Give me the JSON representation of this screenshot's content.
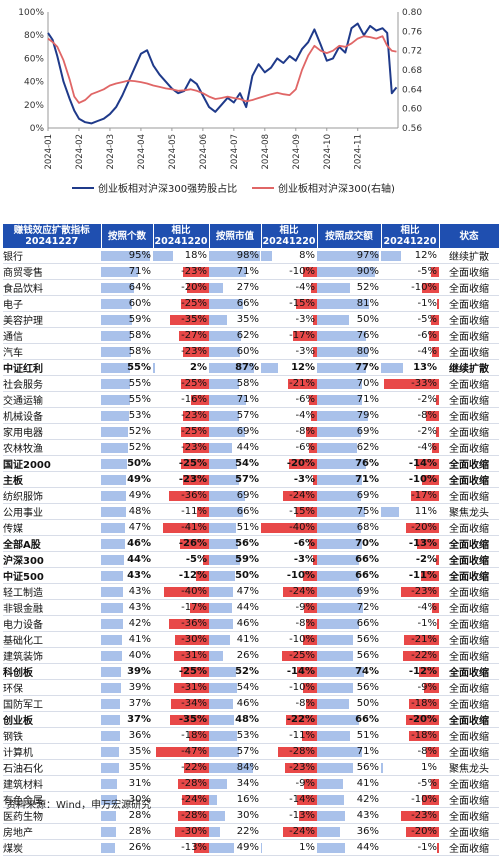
{
  "chart_data": [
    {
      "type": "line",
      "x_ticks": [
        "2024-01",
        "2024-02",
        "2024-03",
        "2024-04",
        "2024-05",
        "2024-06",
        "2024-07",
        "2024-08",
        "2024-09",
        "2024-10",
        "2024-11"
      ],
      "yleft_ticks": [
        "0%",
        "20%",
        "40%",
        "60%",
        "80%",
        "100%"
      ],
      "yright_ticks": [
        "0.56",
        "0.60",
        "0.64",
        "0.68",
        "0.72",
        "0.76",
        "0.80"
      ],
      "ylim_left": [
        0,
        100
      ],
      "ylim_right": [
        0.56,
        0.8
      ],
      "grid": false,
      "legend": "bottom",
      "series": [
        {
          "name": "创业板相对沪深300强势股占比",
          "axis": "left",
          "color": "#1f3a8a",
          "x": [
            0,
            0.15,
            0.3,
            0.5,
            0.7,
            0.85,
            1.0,
            1.2,
            1.4,
            1.6,
            1.8,
            2.0,
            2.2,
            2.4,
            2.6,
            2.8,
            3.0,
            3.2,
            3.4,
            3.6,
            3.8,
            4.0,
            4.2,
            4.4,
            4.6,
            4.8,
            5.0,
            5.2,
            5.4,
            5.6,
            5.8,
            6.0,
            6.2,
            6.4,
            6.6,
            6.8,
            7.0,
            7.2,
            7.4,
            7.6,
            7.8,
            8.0,
            8.2,
            8.4,
            8.6,
            8.8,
            9.0,
            9.2,
            9.4,
            9.6,
            9.8,
            10.0,
            10.2,
            10.4,
            10.6,
            10.8,
            10.95,
            11.1,
            11.25
          ],
          "values": [
            82,
            76,
            62,
            40,
            25,
            15,
            8,
            5,
            4,
            6,
            8,
            12,
            18,
            28,
            40,
            52,
            64,
            67,
            54,
            46,
            40,
            34,
            30,
            32,
            42,
            38,
            28,
            18,
            14,
            20,
            26,
            22,
            30,
            18,
            45,
            55,
            48,
            52,
            60,
            56,
            62,
            58,
            68,
            74,
            85,
            72,
            58,
            60,
            70,
            65,
            86,
            90,
            80,
            88,
            84,
            86,
            82,
            30,
            35
          ]
        },
        {
          "name": "创业板相对沪深300(右轴)",
          "axis": "right",
          "color": "#e06666",
          "x": [
            0,
            0.15,
            0.3,
            0.5,
            0.7,
            0.85,
            1.0,
            1.2,
            1.4,
            1.6,
            1.8,
            2.0,
            2.2,
            2.4,
            2.6,
            2.8,
            3.0,
            3.2,
            3.4,
            3.6,
            3.8,
            4.0,
            4.2,
            4.4,
            4.6,
            4.8,
            5.0,
            5.2,
            5.4,
            5.6,
            5.8,
            6.0,
            6.2,
            6.4,
            6.6,
            6.8,
            7.0,
            7.2,
            7.4,
            7.6,
            7.8,
            8.0,
            8.2,
            8.4,
            8.6,
            8.8,
            9.0,
            9.2,
            9.4,
            9.6,
            9.8,
            10.0,
            10.2,
            10.4,
            10.6,
            10.8,
            10.95,
            11.1,
            11.25
          ],
          "values": [
            0.745,
            0.738,
            0.728,
            0.7,
            0.66,
            0.625,
            0.612,
            0.618,
            0.63,
            0.635,
            0.64,
            0.648,
            0.652,
            0.655,
            0.658,
            0.657,
            0.655,
            0.652,
            0.648,
            0.645,
            0.642,
            0.64,
            0.637,
            0.638,
            0.64,
            0.637,
            0.632,
            0.625,
            0.62,
            0.622,
            0.625,
            0.622,
            0.62,
            0.615,
            0.618,
            0.622,
            0.626,
            0.63,
            0.633,
            0.63,
            0.628,
            0.64,
            0.68,
            0.71,
            0.73,
            0.72,
            0.715,
            0.72,
            0.73,
            0.728,
            0.735,
            0.745,
            0.75,
            0.748,
            0.745,
            0.75,
            0.73,
            0.72,
            0.718
          ]
        }
      ]
    },
    {
      "type": "table",
      "title": "赚钱效应扩散指标",
      "subtitle": "20241227",
      "columns": [
        "按照个数",
        "相比20241220",
        "按照市值",
        "相比20241220",
        "按照成交额",
        "相比20241220",
        "状态"
      ],
      "rows": [
        {
          "name": "银行",
          "bold": false,
          "v": [
            95,
            18,
            98,
            8,
            97,
            12
          ],
          "status": "继续扩散"
        },
        {
          "name": "商贸零售",
          "bold": false,
          "v": [
            71,
            -23,
            71,
            -10,
            90,
            -5
          ],
          "status": "全面收缩"
        },
        {
          "name": "食品饮料",
          "bold": false,
          "v": [
            64,
            -20,
            27,
            -4,
            52,
            -10
          ],
          "status": "全面收缩"
        },
        {
          "name": "电子",
          "bold": false,
          "v": [
            60,
            -25,
            66,
            -15,
            81,
            -1
          ],
          "status": "全面收缩"
        },
        {
          "name": "美容护理",
          "bold": false,
          "v": [
            59,
            -35,
            35,
            -3,
            50,
            -5
          ],
          "status": "全面收缩"
        },
        {
          "name": "通信",
          "bold": false,
          "v": [
            58,
            -27,
            62,
            -17,
            76,
            -6
          ],
          "status": "全面收缩"
        },
        {
          "name": "汽车",
          "bold": false,
          "v": [
            58,
            -23,
            60,
            -3,
            80,
            -4
          ],
          "status": "全面收缩"
        },
        {
          "name": "中证红利",
          "bold": true,
          "v": [
            55,
            2,
            87,
            12,
            77,
            13
          ],
          "status": "继续扩散"
        },
        {
          "name": "社会服务",
          "bold": false,
          "v": [
            55,
            -25,
            58,
            -21,
            70,
            -33
          ],
          "status": "全面收缩"
        },
        {
          "name": "交通运输",
          "bold": false,
          "v": [
            55,
            -16,
            71,
            -6,
            71,
            -2
          ],
          "status": "全面收缩"
        },
        {
          "name": "机械设备",
          "bold": false,
          "v": [
            53,
            -23,
            57,
            -4,
            79,
            -8
          ],
          "status": "全面收缩"
        },
        {
          "name": "家用电器",
          "bold": false,
          "v": [
            52,
            -25,
            69,
            -8,
            69,
            -2
          ],
          "status": "全面收缩"
        },
        {
          "name": "农林牧渔",
          "bold": false,
          "v": [
            52,
            -23,
            44,
            -6,
            62,
            -4
          ],
          "status": "全面收缩"
        },
        {
          "name": "国证2000",
          "bold": true,
          "v": [
            50,
            -25,
            54,
            -20,
            76,
            -14
          ],
          "status": "全面收缩"
        },
        {
          "name": "主板",
          "bold": true,
          "v": [
            49,
            -23,
            57,
            -3,
            71,
            -10
          ],
          "status": "全面收缩"
        },
        {
          "name": "纺织服饰",
          "bold": false,
          "v": [
            49,
            -36,
            69,
            -24,
            69,
            -17
          ],
          "status": "全面收缩"
        },
        {
          "name": "公用事业",
          "bold": false,
          "v": [
            48,
            -11,
            66,
            -15,
            75,
            11
          ],
          "status": "聚焦龙头"
        },
        {
          "name": "传媒",
          "bold": false,
          "v": [
            47,
            -41,
            51,
            -40,
            68,
            -20
          ],
          "status": "全面收缩"
        },
        {
          "name": "全部A股",
          "bold": true,
          "v": [
            46,
            -26,
            56,
            -6,
            70,
            -13
          ],
          "status": "全面收缩"
        },
        {
          "name": "沪深300",
          "bold": true,
          "v": [
            44,
            -5,
            59,
            -3,
            66,
            -2
          ],
          "status": "全面收缩"
        },
        {
          "name": "中证500",
          "bold": true,
          "v": [
            43,
            -12,
            50,
            -10,
            66,
            -11
          ],
          "status": "全面收缩"
        },
        {
          "name": "轻工制造",
          "bold": false,
          "v": [
            43,
            -40,
            47,
            -24,
            69,
            -23
          ],
          "status": "全面收缩"
        },
        {
          "name": "非银金融",
          "bold": false,
          "v": [
            43,
            -17,
            44,
            -9,
            72,
            -4
          ],
          "status": "全面收缩"
        },
        {
          "name": "电力设备",
          "bold": false,
          "v": [
            42,
            -36,
            46,
            -8,
            66,
            -1
          ],
          "status": "全面收缩"
        },
        {
          "name": "基础化工",
          "bold": false,
          "v": [
            41,
            -30,
            41,
            -10,
            56,
            -21
          ],
          "status": "全面收缩"
        },
        {
          "name": "建筑装饰",
          "bold": false,
          "v": [
            40,
            -31,
            26,
            -25,
            56,
            -22
          ],
          "status": "全面收缩"
        },
        {
          "name": "科创板",
          "bold": true,
          "v": [
            39,
            -25,
            52,
            -14,
            74,
            -12
          ],
          "status": "全面收缩"
        },
        {
          "name": "环保",
          "bold": false,
          "v": [
            39,
            -31,
            54,
            -10,
            56,
            -9
          ],
          "status": "全面收缩"
        },
        {
          "name": "国防军工",
          "bold": false,
          "v": [
            37,
            -34,
            46,
            -8,
            50,
            -18
          ],
          "status": "全面收缩"
        },
        {
          "name": "创业板",
          "bold": true,
          "v": [
            37,
            -35,
            48,
            -22,
            66,
            -20
          ],
          "status": "全面收缩"
        },
        {
          "name": "钢铁",
          "bold": false,
          "v": [
            36,
            -18,
            53,
            -11,
            51,
            -18
          ],
          "status": "全面收缩"
        },
        {
          "name": "计算机",
          "bold": false,
          "v": [
            35,
            -47,
            57,
            -28,
            71,
            -8
          ],
          "status": "全面收缩"
        },
        {
          "name": "石油石化",
          "bold": false,
          "v": [
            35,
            -22,
            84,
            -23,
            56,
            1
          ],
          "status": "聚焦龙头"
        },
        {
          "name": "建筑材料",
          "bold": false,
          "v": [
            31,
            -28,
            34,
            -9,
            41,
            -5
          ],
          "status": "全面收缩"
        },
        {
          "name": "有色金属",
          "bold": false,
          "v": [
            30,
            -24,
            16,
            -14,
            42,
            -10
          ],
          "status": "全面收缩"
        },
        {
          "name": "医药生物",
          "bold": false,
          "v": [
            28,
            -28,
            30,
            -13,
            43,
            -23
          ],
          "status": "全面收缩"
        },
        {
          "name": "房地产",
          "bold": false,
          "v": [
            28,
            -30,
            22,
            -24,
            36,
            -20
          ],
          "status": "全面收缩"
        },
        {
          "name": "煤炭",
          "bold": false,
          "v": [
            26,
            -13,
            49,
            1,
            44,
            -1
          ],
          "status": "全面收缩"
        }
      ]
    }
  ],
  "legend": {
    "series1": "创业板相对沪深300强势股占比",
    "series2": "创业板相对沪深300(右轴)"
  },
  "source": "资料来源：Wind，申万宏源研究",
  "colors": {
    "header_bg": "#1f4fb0",
    "bar_blue": "#a9c1ea",
    "bar_red": "#e84848",
    "line_blue": "#1f3a8a",
    "line_red": "#e06666"
  }
}
